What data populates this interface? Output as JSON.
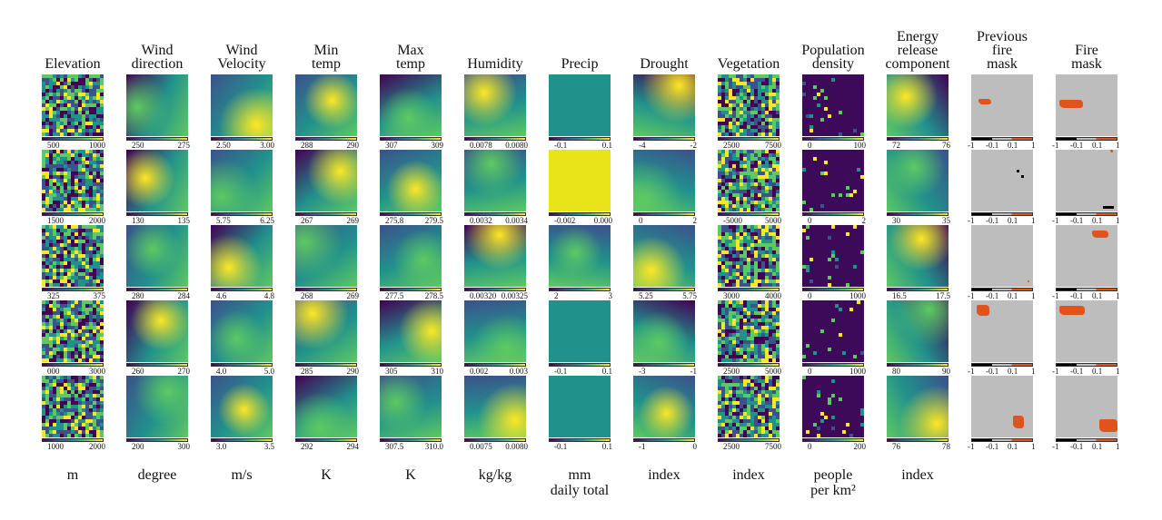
{
  "columns": [
    {
      "id": "elevation",
      "title": [
        "Elevation"
      ],
      "unit": [
        "m"
      ],
      "palette": "viridis",
      "ticks": [
        [
          "500",
          "1000"
        ],
        [
          "1500",
          "2000"
        ],
        [
          "325",
          "375"
        ],
        [
          "000",
          "3000"
        ],
        [
          "1000",
          "2000"
        ]
      ]
    },
    {
      "id": "wind-direction",
      "title": [
        "Wind",
        "direction"
      ],
      "unit": [
        "degree"
      ],
      "palette": "viridis",
      "ticks": [
        [
          "250",
          "275"
        ],
        [
          "130",
          "135"
        ],
        [
          "280",
          "284"
        ],
        [
          "260",
          "270"
        ],
        [
          "200",
          "300"
        ]
      ]
    },
    {
      "id": "wind-velocity",
      "title": [
        "Wind",
        "Velocity"
      ],
      "unit": [
        "m/s"
      ],
      "palette": "viridis",
      "ticks": [
        [
          "2.50",
          "3.00"
        ],
        [
          "5.75",
          "6.25"
        ],
        [
          "4.6",
          "4.8"
        ],
        [
          "4.0",
          "5.0"
        ],
        [
          "3.0",
          "3.5"
        ]
      ]
    },
    {
      "id": "min-temp",
      "title": [
        "Min",
        "temp"
      ],
      "unit": [
        "K"
      ],
      "palette": "viridis",
      "ticks": [
        [
          "288",
          "290"
        ],
        [
          "267",
          "269"
        ],
        [
          "268",
          "269"
        ],
        [
          "285",
          "290"
        ],
        [
          "292",
          "294"
        ]
      ]
    },
    {
      "id": "max-temp",
      "title": [
        "Max",
        "temp"
      ],
      "unit": [
        "K"
      ],
      "palette": "viridis",
      "ticks": [
        [
          "307",
          "309"
        ],
        [
          "275.8",
          "279.5"
        ],
        [
          "277.5",
          "278.5"
        ],
        [
          "305",
          "310"
        ],
        [
          "307.5",
          "310.0"
        ]
      ]
    },
    {
      "id": "humidity",
      "title": [
        "Humidity"
      ],
      "unit": [
        "kg/kg"
      ],
      "palette": "viridis",
      "ticks": [
        [
          "0.0078",
          "0.0080"
        ],
        [
          "0.0032",
          "0.0034"
        ],
        [
          "0.00320",
          "0.00325"
        ],
        [
          "0.002",
          "0.003"
        ],
        [
          "0.0075",
          "0.0080"
        ]
      ]
    },
    {
      "id": "precip",
      "title": [
        "Precip"
      ],
      "unit": [
        "mm",
        "daily total"
      ],
      "palette": "viridis",
      "ticks": [
        [
          "-0.1",
          "0.1"
        ],
        [
          "-0.002",
          "0.000"
        ],
        [
          "2",
          "3"
        ],
        [
          "-0.1",
          "0.1"
        ],
        [
          "-0.1",
          "0.1"
        ]
      ]
    },
    {
      "id": "drought",
      "title": [
        "Drought"
      ],
      "unit": [
        "index"
      ],
      "palette": "viridis",
      "ticks": [
        [
          "-4",
          "-2"
        ],
        [
          "0",
          "2"
        ],
        [
          "5.25",
          "5.75"
        ],
        [
          "-3",
          "-1"
        ],
        [
          "-1",
          "0"
        ]
      ]
    },
    {
      "id": "vegetation",
      "title": [
        "Vegetation"
      ],
      "unit": [
        "index"
      ],
      "palette": "viridis",
      "ticks": [
        [
          "2500",
          "7500"
        ],
        [
          "-5000",
          "5000"
        ],
        [
          "3000",
          "4000"
        ],
        [
          "2500",
          "5000"
        ],
        [
          "2500",
          "7500"
        ]
      ]
    },
    {
      "id": "population-density",
      "title": [
        "Population",
        "density"
      ],
      "unit": [
        "people",
        "per km²"
      ],
      "palette": "viridis",
      "ticks": [
        [
          "0",
          "100"
        ],
        [
          "0",
          "2"
        ],
        [
          "0",
          "1000"
        ],
        [
          "0",
          "1000"
        ],
        [
          "0",
          "200"
        ]
      ]
    },
    {
      "id": "energy-release",
      "title": [
        "Energy",
        "release",
        "component"
      ],
      "unit": [
        "index"
      ],
      "palette": "viridis",
      "ticks": [
        [
          "72",
          "76"
        ],
        [
          "30",
          "35"
        ],
        [
          "16.5",
          "17.5"
        ],
        [
          "80",
          "90"
        ],
        [
          "76",
          "78"
        ]
      ]
    },
    {
      "id": "previous-fire-mask",
      "title": [
        "Previous",
        "fire",
        "mask"
      ],
      "unit": [],
      "palette": "mask",
      "ticks": [
        [
          "-1",
          "-0.1",
          "0.1",
          "1"
        ],
        [
          "-1",
          "-0.1",
          "0.1",
          "1"
        ],
        [
          "-1",
          "-0.1",
          "0.1",
          "1"
        ],
        [
          "-1",
          "-0.1",
          "0.1",
          "1"
        ],
        [
          "-1",
          "-0.1",
          "0.1",
          "1"
        ]
      ]
    },
    {
      "id": "fire-mask",
      "title": [
        "Fire",
        "mask"
      ],
      "unit": [],
      "palette": "mask",
      "ticks": [
        [
          "-1",
          "-0.1",
          "0.1",
          "1"
        ],
        [
          "-1",
          "-0.1",
          "0.1",
          "1"
        ],
        [
          "-1",
          "-0.1",
          "0.1",
          "1"
        ],
        [
          "-1",
          "-0.1",
          "0.1",
          "1"
        ],
        [
          "-1",
          "-0.1",
          "0.1",
          "1"
        ]
      ]
    }
  ],
  "colors": {
    "viridis": [
      "#440154",
      "#3b528b",
      "#21918c",
      "#5ec962",
      "#fde725"
    ],
    "mask_no_data": "#000000",
    "mask_no_fire": "#bdbdbd",
    "mask_fire": "#e0531c"
  }
}
